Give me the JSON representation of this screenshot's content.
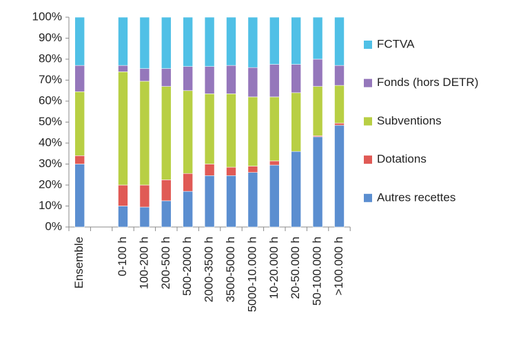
{
  "chart_data": {
    "type": "stacked_bar",
    "categories": [
      "Ensemble",
      null,
      "0-100 h",
      "100-200 h",
      "200-500 h",
      "500-2000 h",
      "2000-3500 h",
      "3500-5000 h",
      "5000-10.000 h",
      "10-20.000 h",
      "20-50.000 h",
      "50-100.000 h",
      ">100.000 h"
    ],
    "series": [
      {
        "name": "Autres recettes",
        "color": "#5b8ed0",
        "values": [
          30,
          null,
          10,
          9.5,
          12.5,
          17,
          24.5,
          24.5,
          26,
          29.5,
          36,
          43,
          48.5
        ]
      },
      {
        "name": "Dotations",
        "color": "#e05a55",
        "values": [
          4,
          null,
          10,
          10.5,
          10,
          8.5,
          5.5,
          4,
          3,
          2,
          0,
          0.5,
          1
        ]
      },
      {
        "name": "Subventions",
        "color": "#b8cf44",
        "values": [
          30.5,
          null,
          54,
          49.5,
          44.5,
          39.5,
          33.5,
          35,
          33,
          30.5,
          28,
          23.5,
          18
        ]
      },
      {
        "name": "Fonds (hors DETR)",
        "color": "#9577bb",
        "values": [
          12.5,
          null,
          3,
          6,
          8.5,
          11.5,
          13,
          13.5,
          14,
          15.5,
          13.5,
          13,
          9.5
        ]
      },
      {
        "name": "FCTVA",
        "color": "#50c0e6",
        "values": [
          23,
          null,
          23,
          24.5,
          24.5,
          23.5,
          23.5,
          23,
          24,
          22.5,
          22.5,
          20,
          23
        ]
      }
    ],
    "ylim": [
      0,
      100
    ],
    "yticks": [
      {
        "value": 0,
        "label": "0%"
      },
      {
        "value": 10,
        "label": "10%"
      },
      {
        "value": 20,
        "label": "20%"
      },
      {
        "value": 30,
        "label": "30%"
      },
      {
        "value": 40,
        "label": "40%"
      },
      {
        "value": 50,
        "label": "50%"
      },
      {
        "value": 60,
        "label": "60%"
      },
      {
        "value": 70,
        "label": "70%"
      },
      {
        "value": 80,
        "label": "80%"
      },
      {
        "value": 90,
        "label": "90%"
      },
      {
        "value": 100,
        "label": "100%"
      }
    ],
    "legend": "right"
  }
}
